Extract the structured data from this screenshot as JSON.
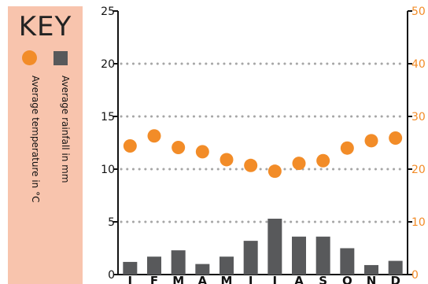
{
  "key": {
    "title": "KEY",
    "temperature_label": "Average temperature in °C",
    "rainfall_label": "Average rainfall in mm"
  },
  "colors": {
    "temperature": "#f28c28",
    "rainfall": "#58595b",
    "key_bg": "#f8c4ad",
    "grid": "#a6a6a6"
  },
  "chart_data": {
    "type": "bar+scatter",
    "categories": [
      "J",
      "F",
      "M",
      "A",
      "M",
      "J",
      "J",
      "A",
      "S",
      "O",
      "N",
      "D"
    ],
    "series": [
      {
        "name": "Average rainfall in mm",
        "type": "bar",
        "axis": "left",
        "values": [
          1.2,
          1.7,
          2.3,
          1.0,
          1.7,
          3.2,
          5.3,
          3.6,
          3.6,
          2.5,
          0.9,
          1.3
        ]
      },
      {
        "name": "Average temperature in °C",
        "type": "scatter",
        "axis": "right",
        "values": [
          24.4,
          26.3,
          24.1,
          23.3,
          21.8,
          20.7,
          19.6,
          21.1,
          21.6,
          24.0,
          25.4,
          25.9
        ]
      }
    ],
    "left_axis": {
      "ticks": [
        0,
        5,
        10,
        15,
        20,
        25
      ],
      "range": [
        0,
        25
      ]
    },
    "right_axis": {
      "ticks": [
        0,
        10,
        20,
        30,
        40,
        50
      ],
      "range": [
        0,
        50
      ]
    },
    "gridlines": [
      5,
      10,
      15,
      20
    ],
    "grid": "dotted horizontal"
  }
}
